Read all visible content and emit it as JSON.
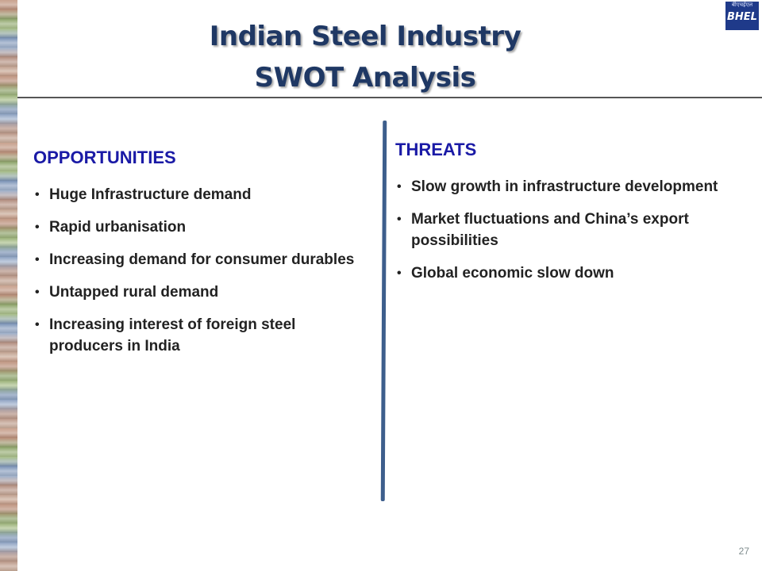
{
  "slide": {
    "title_line1": "Indian Steel Industry",
    "title_line2": "SWOT Analysis",
    "logo_text": "BHEL",
    "logo_subtext": "बीएचईएल",
    "page_number": "27",
    "opportunities": {
      "heading": "OPPORTUNITIES",
      "items": [
        "Huge Infrastructure demand",
        "Rapid urbanisation",
        "Increasing demand for consumer durables",
        "Untapped rural demand",
        "Increasing interest of foreign steel producers in India"
      ]
    },
    "threats": {
      "heading": "THREATS",
      "items": [
        "Slow growth in infrastructure development",
        "Market fluctuations and China’s export possibilities",
        "Global economic slow down"
      ]
    }
  },
  "colors": {
    "title": "#1f3864",
    "heading": "#1a1aa6",
    "divider": "#3d5e8c",
    "logo_bg": "#1f3a8a"
  }
}
